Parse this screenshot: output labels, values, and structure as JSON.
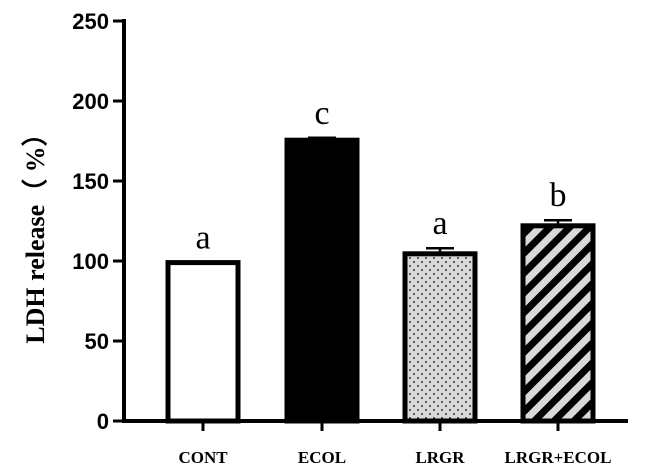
{
  "chart_data": {
    "type": "bar",
    "title": "",
    "xlabel": "",
    "ylabel": "LDH release（ %）",
    "ylim": [
      0,
      250
    ],
    "yticks": [
      0,
      50,
      100,
      150,
      200,
      250
    ],
    "categories": [
      "CONT",
      "ECOL",
      "LRGR",
      "LRGR+ECOL"
    ],
    "values": [
      99,
      175.5,
      104.5,
      122
    ],
    "errors": [
      0,
      1.5,
      3.5,
      3.5
    ],
    "significance_labels": [
      "a",
      "c",
      "a",
      "b"
    ],
    "fills": [
      "white",
      "black",
      "dots",
      "diagonal-stripes"
    ],
    "colors": {
      "ink": "#000000",
      "background": "#ffffff",
      "pattern_gray": "#d9d9d9"
    },
    "grid": false,
    "legend": "none"
  }
}
